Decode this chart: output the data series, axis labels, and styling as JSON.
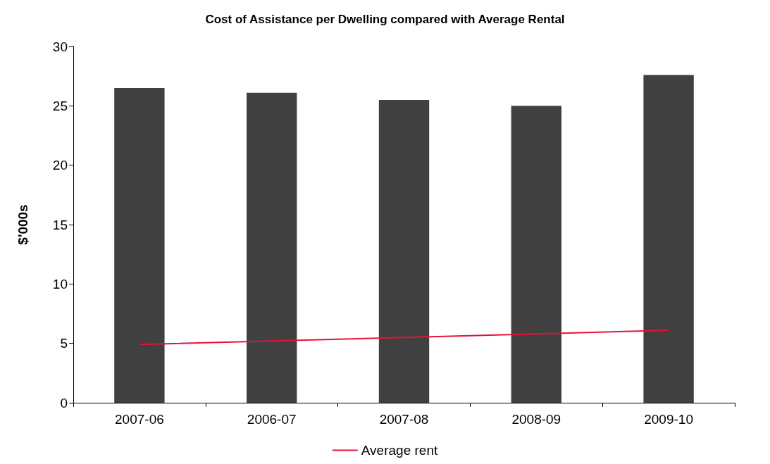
{
  "chart_data": {
    "type": "bar",
    "title": "Cost of Assistance per Dwelling compared with Average Rental",
    "ylabel": "$'000s",
    "categories": [
      "2007-06",
      "2006-07",
      "2007-08",
      "2008-09",
      "2009-10"
    ],
    "series": [
      {
        "color": "#404040",
        "values": [
          26.5,
          26.1,
          25.5,
          25.0,
          27.6
        ]
      },
      {
        "type": "line",
        "name": "Average rent",
        "color": "#e8103a",
        "values": [
          4.9,
          5.2,
          5.5,
          5.8,
          6.1
        ]
      }
    ],
    "ylim": [
      0,
      30
    ],
    "yticks": [
      0,
      5,
      10,
      15,
      20,
      25,
      30
    ],
    "grid": false,
    "legend": "bottom",
    "marker": "none"
  }
}
